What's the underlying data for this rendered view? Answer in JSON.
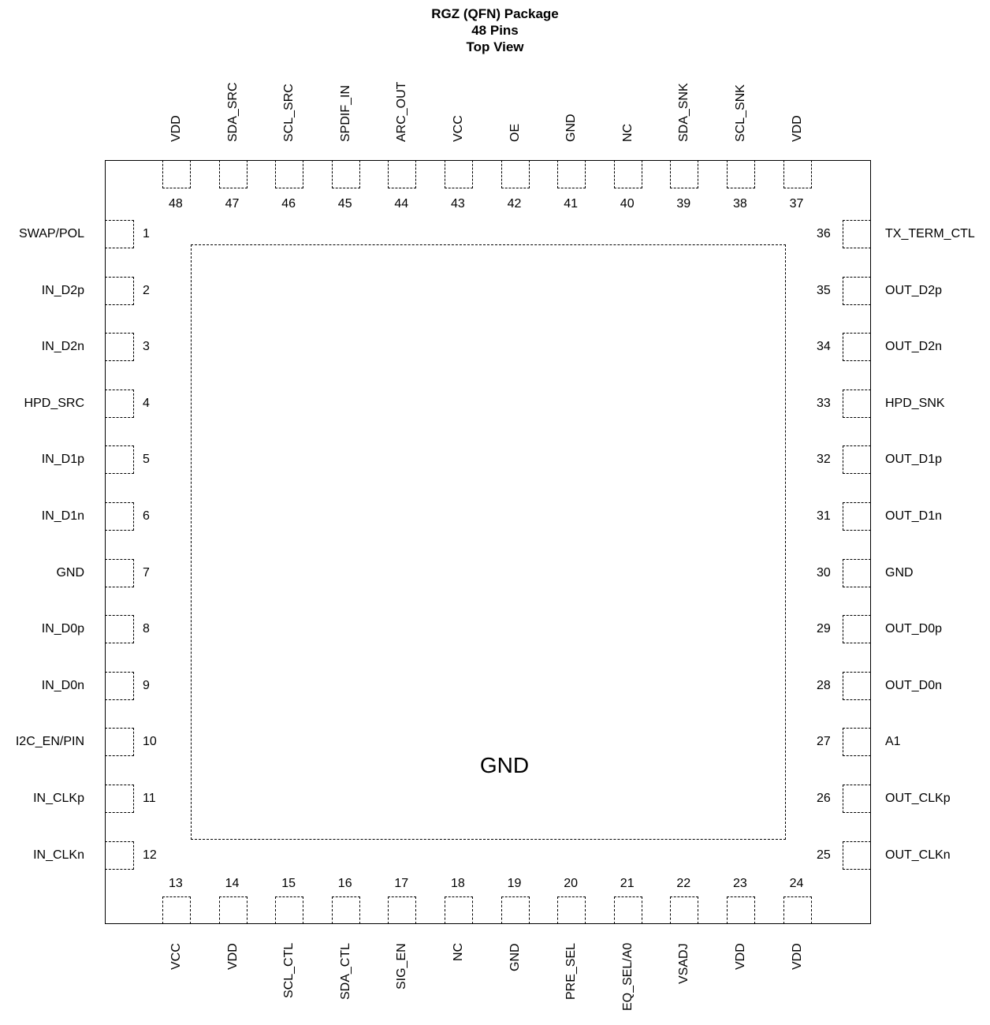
{
  "title": {
    "line1": "RGZ (QFN) Package",
    "line2": "48 Pins",
    "line3": "Top View"
  },
  "thermal_pad_label": "GND",
  "pins": {
    "left": [
      {
        "num": "1",
        "name": "SWAP/POL"
      },
      {
        "num": "2",
        "name": "IN_D2p"
      },
      {
        "num": "3",
        "name": "IN_D2n"
      },
      {
        "num": "4",
        "name": "HPD_SRC"
      },
      {
        "num": "5",
        "name": "IN_D1p"
      },
      {
        "num": "6",
        "name": "IN_D1n"
      },
      {
        "num": "7",
        "name": "GND"
      },
      {
        "num": "8",
        "name": "IN_D0p"
      },
      {
        "num": "9",
        "name": "IN_D0n"
      },
      {
        "num": "10",
        "name": "I2C_EN/PIN"
      },
      {
        "num": "11",
        "name": "IN_CLKp"
      },
      {
        "num": "12",
        "name": "IN_CLKn"
      }
    ],
    "bottom": [
      {
        "num": "13",
        "name": "VCC"
      },
      {
        "num": "14",
        "name": "VDD"
      },
      {
        "num": "15",
        "name": "SCL_CTL"
      },
      {
        "num": "16",
        "name": "SDA_CTL"
      },
      {
        "num": "17",
        "name": "SIG_EN"
      },
      {
        "num": "18",
        "name": "NC"
      },
      {
        "num": "19",
        "name": "GND"
      },
      {
        "num": "20",
        "name": "PRE_SEL"
      },
      {
        "num": "21",
        "name": "EQ_SEL/A0"
      },
      {
        "num": "22",
        "name": "VSADJ"
      },
      {
        "num": "23",
        "name": "VDD"
      },
      {
        "num": "24",
        "name": "VDD"
      }
    ],
    "right": [
      {
        "num": "25",
        "name": "OUT_CLKn"
      },
      {
        "num": "26",
        "name": "OUT_CLKp"
      },
      {
        "num": "27",
        "name": "A1"
      },
      {
        "num": "28",
        "name": "OUT_D0n"
      },
      {
        "num": "29",
        "name": "OUT_D0p"
      },
      {
        "num": "30",
        "name": "GND"
      },
      {
        "num": "31",
        "name": "OUT_D1n"
      },
      {
        "num": "32",
        "name": "OUT_D1p"
      },
      {
        "num": "33",
        "name": "HPD_SNK"
      },
      {
        "num": "34",
        "name": "OUT_D2n"
      },
      {
        "num": "35",
        "name": "OUT_D2p"
      },
      {
        "num": "36",
        "name": "TX_TERM_CTL"
      }
    ],
    "top": [
      {
        "num": "37",
        "name": "VDD"
      },
      {
        "num": "38",
        "name": "SCL_SNK"
      },
      {
        "num": "39",
        "name": "SDA_SNK"
      },
      {
        "num": "40",
        "name": "NC"
      },
      {
        "num": "41",
        "name": "GND"
      },
      {
        "num": "42",
        "name": "OE"
      },
      {
        "num": "43",
        "name": "VCC"
      },
      {
        "num": "44",
        "name": "ARC_OUT"
      },
      {
        "num": "45",
        "name": "SPDIF_IN"
      },
      {
        "num": "46",
        "name": "SCL_SRC"
      },
      {
        "num": "47",
        "name": "SDA_SRC"
      },
      {
        "num": "48",
        "name": "VDD"
      }
    ]
  }
}
